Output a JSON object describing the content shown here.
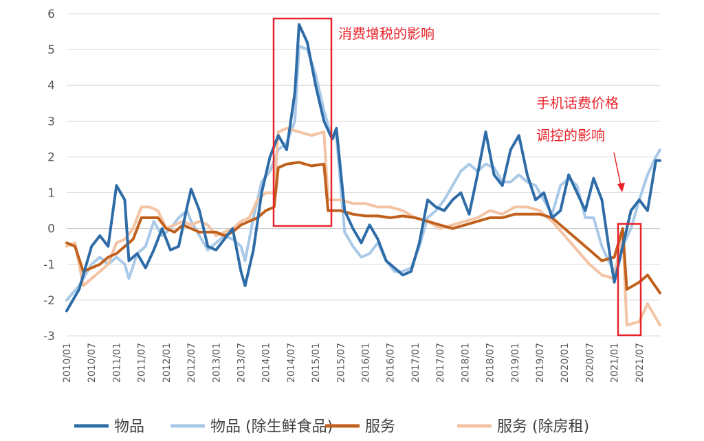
{
  "chart_data": {
    "type": "line",
    "title": "",
    "xlabel": "",
    "ylabel": "",
    "ylim": [
      -3,
      6
    ],
    "yticks": [
      -3,
      -2,
      -1,
      0,
      1,
      2,
      3,
      4,
      5,
      6
    ],
    "grid": true,
    "legend_position": "bottom",
    "x_tick_labels": [
      "2010/01",
      "2010/07",
      "2011/01",
      "2011/07",
      "2012/01",
      "2012/07",
      "2013/01",
      "2013/07",
      "2014/01",
      "2014/07",
      "2015/01",
      "2015/07",
      "2016/01",
      "2016/07",
      "2017/01",
      "2017/07",
      "2018/01",
      "2018/07",
      "2019/01",
      "2019/07",
      "2020/01",
      "2020/07",
      "2021/01",
      "2021/07"
    ],
    "x_start": "2010/01",
    "x_end": "2021/12",
    "series": [
      {
        "name": "物品",
        "color": "#2e6ca8",
        "points": [
          [
            "2010/01",
            -2.3
          ],
          [
            "2010/04",
            -1.7
          ],
          [
            "2010/07",
            -0.5
          ],
          [
            "2010/09",
            -0.2
          ],
          [
            "2010/11",
            -0.5
          ],
          [
            "2011/01",
            1.2
          ],
          [
            "2011/03",
            0.8
          ],
          [
            "2011/04",
            -0.9
          ],
          [
            "2011/06",
            -0.7
          ],
          [
            "2011/08",
            -1.1
          ],
          [
            "2011/10",
            -0.6
          ],
          [
            "2011/12",
            0.0
          ],
          [
            "2012/02",
            -0.6
          ],
          [
            "2012/04",
            -0.5
          ],
          [
            "2012/06",
            0.6
          ],
          [
            "2012/07",
            1.1
          ],
          [
            "2012/09",
            0.5
          ],
          [
            "2012/11",
            -0.5
          ],
          [
            "2013/01",
            -0.6
          ],
          [
            "2013/03",
            -0.3
          ],
          [
            "2013/05",
            0.0
          ],
          [
            "2013/07",
            -1.2
          ],
          [
            "2013/08",
            -1.6
          ],
          [
            "2013/10",
            -0.6
          ],
          [
            "2013/12",
            1.0
          ],
          [
            "2014/02",
            2.0
          ],
          [
            "2014/04",
            2.6
          ],
          [
            "2014/06",
            2.2
          ],
          [
            "2014/08",
            3.8
          ],
          [
            "2014/09",
            5.7
          ],
          [
            "2014/11",
            5.2
          ],
          [
            "2015/01",
            4.0
          ],
          [
            "2015/03",
            3.0
          ],
          [
            "2015/05",
            2.5
          ],
          [
            "2015/06",
            2.8
          ],
          [
            "2015/08",
            0.5
          ],
          [
            "2015/10",
            0.0
          ],
          [
            "2015/12",
            -0.4
          ],
          [
            "2016/02",
            0.1
          ],
          [
            "2016/04",
            -0.3
          ],
          [
            "2016/06",
            -0.9
          ],
          [
            "2016/08",
            -1.1
          ],
          [
            "2016/10",
            -1.3
          ],
          [
            "2016/12",
            -1.2
          ],
          [
            "2017/02",
            -0.4
          ],
          [
            "2017/04",
            0.8
          ],
          [
            "2017/06",
            0.6
          ],
          [
            "2017/08",
            0.5
          ],
          [
            "2017/10",
            0.8
          ],
          [
            "2017/12",
            1.0
          ],
          [
            "2018/02",
            0.4
          ],
          [
            "2018/04",
            1.5
          ],
          [
            "2018/06",
            2.7
          ],
          [
            "2018/08",
            1.5
          ],
          [
            "2018/10",
            1.2
          ],
          [
            "2018/12",
            2.2
          ],
          [
            "2019/02",
            2.6
          ],
          [
            "2019/04",
            1.5
          ],
          [
            "2019/06",
            0.8
          ],
          [
            "2019/08",
            1.0
          ],
          [
            "2019/10",
            0.3
          ],
          [
            "2019/12",
            0.5
          ],
          [
            "2020/02",
            1.5
          ],
          [
            "2020/04",
            1.0
          ],
          [
            "2020/06",
            0.5
          ],
          [
            "2020/08",
            1.4
          ],
          [
            "2020/10",
            0.8
          ],
          [
            "2020/12",
            -0.8
          ],
          [
            "2021/01",
            -1.5
          ],
          [
            "2021/03",
            -0.5
          ],
          [
            "2021/05",
            0.5
          ],
          [
            "2021/07",
            0.8
          ],
          [
            "2021/09",
            0.5
          ],
          [
            "2021/11",
            1.9
          ],
          [
            "2021/12",
            1.9
          ]
        ]
      },
      {
        "name": "物品 (除生鲜食品)",
        "color": "#a9c9e8",
        "points": [
          [
            "2010/01",
            -2.0
          ],
          [
            "2010/04",
            -1.6
          ],
          [
            "2010/07",
            -1.0
          ],
          [
            "2010/09",
            -0.8
          ],
          [
            "2010/11",
            -1.0
          ],
          [
            "2011/01",
            -0.8
          ],
          [
            "2011/03",
            -1.0
          ],
          [
            "2011/04",
            -1.4
          ],
          [
            "2011/06",
            -0.7
          ],
          [
            "2011/08",
            -0.5
          ],
          [
            "2011/10",
            0.2
          ],
          [
            "2011/12",
            -0.2
          ],
          [
            "2012/02",
            0.0
          ],
          [
            "2012/04",
            0.3
          ],
          [
            "2012/06",
            0.5
          ],
          [
            "2012/07",
            0.2
          ],
          [
            "2012/09",
            -0.2
          ],
          [
            "2012/11",
            -0.6
          ],
          [
            "2013/01",
            -0.4
          ],
          [
            "2013/03",
            -0.2
          ],
          [
            "2013/05",
            -0.3
          ],
          [
            "2013/07",
            -0.5
          ],
          [
            "2013/08",
            -0.9
          ],
          [
            "2013/10",
            0.3
          ],
          [
            "2013/12",
            1.3
          ],
          [
            "2014/02",
            1.6
          ],
          [
            "2014/04",
            2.2
          ],
          [
            "2014/06",
            2.4
          ],
          [
            "2014/08",
            3.0
          ],
          [
            "2014/09",
            5.1
          ],
          [
            "2014/11",
            5.0
          ],
          [
            "2015/01",
            4.3
          ],
          [
            "2015/03",
            3.3
          ],
          [
            "2015/05",
            2.5
          ],
          [
            "2015/06",
            2.6
          ],
          [
            "2015/08",
            -0.1
          ],
          [
            "2015/10",
            -0.5
          ],
          [
            "2015/12",
            -0.8
          ],
          [
            "2016/02",
            -0.7
          ],
          [
            "2016/04",
            -0.4
          ],
          [
            "2016/06",
            -0.9
          ],
          [
            "2016/08",
            -1.2
          ],
          [
            "2016/10",
            -1.2
          ],
          [
            "2016/12",
            -1.1
          ],
          [
            "2017/02",
            -0.5
          ],
          [
            "2017/04",
            0.3
          ],
          [
            "2017/06",
            0.5
          ],
          [
            "2017/08",
            0.8
          ],
          [
            "2017/10",
            1.2
          ],
          [
            "2017/12",
            1.6
          ],
          [
            "2018/02",
            1.8
          ],
          [
            "2018/04",
            1.6
          ],
          [
            "2018/06",
            1.8
          ],
          [
            "2018/08",
            1.7
          ],
          [
            "2018/10",
            1.3
          ],
          [
            "2018/12",
            1.3
          ],
          [
            "2019/02",
            1.5
          ],
          [
            "2019/04",
            1.3
          ],
          [
            "2019/06",
            1.2
          ],
          [
            "2019/08",
            0.8
          ],
          [
            "2019/10",
            0.4
          ],
          [
            "2019/12",
            1.2
          ],
          [
            "2020/02",
            1.4
          ],
          [
            "2020/04",
            1.2
          ],
          [
            "2020/06",
            0.3
          ],
          [
            "2020/08",
            0.3
          ],
          [
            "2020/10",
            -0.5
          ],
          [
            "2020/12",
            -1.0
          ],
          [
            "2021/01",
            -1.2
          ],
          [
            "2021/03",
            -0.5
          ],
          [
            "2021/05",
            0.0
          ],
          [
            "2021/07",
            0.8
          ],
          [
            "2021/09",
            1.5
          ],
          [
            "2021/11",
            2.0
          ],
          [
            "2021/12",
            2.2
          ]
        ]
      },
      {
        "name": "服务",
        "color": "#c0601c",
        "points": [
          [
            "2010/01",
            -0.4
          ],
          [
            "2010/03",
            -0.5
          ],
          [
            "2010/05",
            -1.2
          ],
          [
            "2010/07",
            -1.1
          ],
          [
            "2010/09",
            -1.0
          ],
          [
            "2010/11",
            -0.8
          ],
          [
            "2011/01",
            -0.7
          ],
          [
            "2011/03",
            -0.5
          ],
          [
            "2011/05",
            -0.3
          ],
          [
            "2011/07",
            0.3
          ],
          [
            "2011/09",
            0.3
          ],
          [
            "2011/11",
            0.3
          ],
          [
            "2012/01",
            0.0
          ],
          [
            "2012/03",
            -0.1
          ],
          [
            "2012/05",
            0.1
          ],
          [
            "2012/07",
            0.0
          ],
          [
            "2012/09",
            -0.1
          ],
          [
            "2012/11",
            -0.1
          ],
          [
            "2013/01",
            -0.1
          ],
          [
            "2013/03",
            -0.2
          ],
          [
            "2013/05",
            -0.1
          ],
          [
            "2013/07",
            0.1
          ],
          [
            "2013/09",
            0.2
          ],
          [
            "2013/11",
            0.3
          ],
          [
            "2014/01",
            0.5
          ],
          [
            "2014/03",
            0.6
          ],
          [
            "2014/04",
            1.7
          ],
          [
            "2014/06",
            1.8
          ],
          [
            "2014/09",
            1.85
          ],
          [
            "2014/12",
            1.75
          ],
          [
            "2015/03",
            1.8
          ],
          [
            "2015/04",
            0.5
          ],
          [
            "2015/07",
            0.5
          ],
          [
            "2015/10",
            0.4
          ],
          [
            "2016/01",
            0.35
          ],
          [
            "2016/04",
            0.35
          ],
          [
            "2016/07",
            0.3
          ],
          [
            "2016/10",
            0.35
          ],
          [
            "2017/01",
            0.3
          ],
          [
            "2017/04",
            0.2
          ],
          [
            "2017/07",
            0.1
          ],
          [
            "2017/10",
            0.0
          ],
          [
            "2018/01",
            0.1
          ],
          [
            "2018/04",
            0.2
          ],
          [
            "2018/07",
            0.3
          ],
          [
            "2018/10",
            0.3
          ],
          [
            "2019/01",
            0.4
          ],
          [
            "2019/04",
            0.4
          ],
          [
            "2019/07",
            0.4
          ],
          [
            "2019/10",
            0.3
          ],
          [
            "2020/01",
            0.0
          ],
          [
            "2020/04",
            -0.3
          ],
          [
            "2020/07",
            -0.6
          ],
          [
            "2020/10",
            -0.9
          ],
          [
            "2021/01",
            -0.8
          ],
          [
            "2021/03",
            0.0
          ],
          [
            "2021/04",
            -1.7
          ],
          [
            "2021/07",
            -1.5
          ],
          [
            "2021/09",
            -1.3
          ],
          [
            "2021/12",
            -1.8
          ]
        ]
      },
      {
        "name": "服务 (除房租)",
        "color": "#f3c3a3",
        "points": [
          [
            "2010/01",
            -0.5
          ],
          [
            "2010/03",
            -0.4
          ],
          [
            "2010/05",
            -1.6
          ],
          [
            "2010/07",
            -1.4
          ],
          [
            "2010/09",
            -1.2
          ],
          [
            "2010/11",
            -1.0
          ],
          [
            "2011/01",
            -0.4
          ],
          [
            "2011/03",
            -0.3
          ],
          [
            "2011/05",
            0.0
          ],
          [
            "2011/07",
            0.6
          ],
          [
            "2011/09",
            0.6
          ],
          [
            "2011/11",
            0.5
          ],
          [
            "2012/01",
            0.0
          ],
          [
            "2012/03",
            0.1
          ],
          [
            "2012/05",
            0.2
          ],
          [
            "2012/07",
            0.1
          ],
          [
            "2012/09",
            0.2
          ],
          [
            "2012/11",
            0.1
          ],
          [
            "2013/01",
            -0.2
          ],
          [
            "2013/03",
            -0.1
          ],
          [
            "2013/05",
            0.0
          ],
          [
            "2013/07",
            0.2
          ],
          [
            "2013/09",
            0.3
          ],
          [
            "2013/11",
            0.8
          ],
          [
            "2014/01",
            1.0
          ],
          [
            "2014/03",
            1.0
          ],
          [
            "2014/04",
            2.7
          ],
          [
            "2014/06",
            2.8
          ],
          [
            "2014/09",
            2.7
          ],
          [
            "2014/12",
            2.6
          ],
          [
            "2015/03",
            2.7
          ],
          [
            "2015/04",
            0.8
          ],
          [
            "2015/07",
            0.8
          ],
          [
            "2015/10",
            0.7
          ],
          [
            "2016/01",
            0.7
          ],
          [
            "2016/04",
            0.6
          ],
          [
            "2016/07",
            0.6
          ],
          [
            "2016/10",
            0.5
          ],
          [
            "2017/01",
            0.3
          ],
          [
            "2017/04",
            0.2
          ],
          [
            "2017/07",
            0.0
          ],
          [
            "2017/10",
            0.1
          ],
          [
            "2018/01",
            0.2
          ],
          [
            "2018/04",
            0.3
          ],
          [
            "2018/07",
            0.5
          ],
          [
            "2018/10",
            0.4
          ],
          [
            "2019/01",
            0.6
          ],
          [
            "2019/04",
            0.6
          ],
          [
            "2019/07",
            0.5
          ],
          [
            "2019/10",
            0.2
          ],
          [
            "2020/01",
            -0.2
          ],
          [
            "2020/04",
            -0.6
          ],
          [
            "2020/07",
            -1.0
          ],
          [
            "2020/10",
            -1.3
          ],
          [
            "2021/01",
            -1.4
          ],
          [
            "2021/03",
            0.0
          ],
          [
            "2021/04",
            -2.7
          ],
          [
            "2021/07",
            -2.6
          ],
          [
            "2021/09",
            -2.1
          ],
          [
            "2021/12",
            -2.7
          ]
        ]
      }
    ],
    "annotations": {
      "tax_label": "消费增税的影响",
      "phone_label_line1": "手机话费价格",
      "phone_label_line2": "调控的影响",
      "box_color": "#e8242b"
    }
  }
}
